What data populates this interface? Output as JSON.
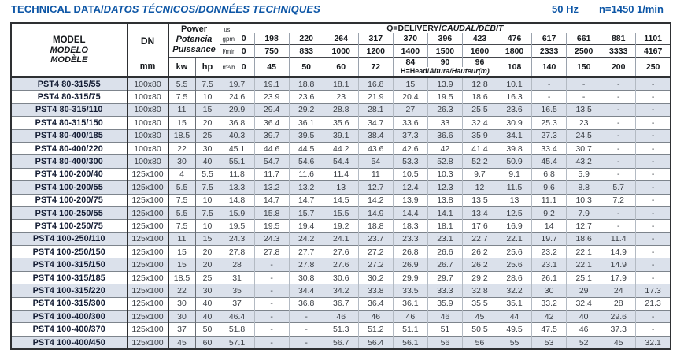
{
  "header": {
    "title_regular": "TECHNICAL DATA/",
    "title_italic": "DATOS TÉCNICOS/DONNÉES TECHNIQUES",
    "frequency": "50 Hz",
    "speed": "n=1450 1/min"
  },
  "table": {
    "model_header": {
      "en": "MODEL",
      "es": "MODELO",
      "fr": "MODÈLE"
    },
    "dn": {
      "label": "DN",
      "unit": "mm"
    },
    "power": {
      "en": "Power",
      "es": "Potencia",
      "fr": "Puissance",
      "kw": "kw",
      "hp": "hp"
    },
    "delivery": {
      "label_regular": "Q=DELIVERY/",
      "label_italic": "CAUDAL/DÉBIT",
      "us_label": "us",
      "gpm_label": "gpm",
      "lmin_label": "l/min",
      "m3h_label": "m³/h",
      "gpm": [
        "0",
        "198",
        "220",
        "264",
        "317",
        "370",
        "396",
        "423",
        "476",
        "617",
        "661",
        "881",
        "1101"
      ],
      "lmin": [
        "0",
        "750",
        "833",
        "1000",
        "1200",
        "1400",
        "1500",
        "1600",
        "1800",
        "2333",
        "2500",
        "3333",
        "4167"
      ],
      "m3h": [
        "0",
        "45",
        "50",
        "60",
        "72",
        "84",
        "90",
        "96",
        "108",
        "140",
        "150",
        "200",
        "250"
      ],
      "head_label_regular": "H=Head/",
      "head_label_italic": "Altura/Hauteur(m)"
    },
    "rows": [
      {
        "model": "PST4 80-315/55",
        "dn": "100x80",
        "kw": "5.5",
        "hp": "7.5",
        "values": [
          "19.7",
          "19.1",
          "18.8",
          "18.1",
          "16.8",
          "15",
          "13.9",
          "12.8",
          "10.1",
          "-",
          "-",
          "-",
          "-"
        ]
      },
      {
        "model": "PST4 80-315/75",
        "dn": "100x80",
        "kw": "7.5",
        "hp": "10",
        "values": [
          "24.6",
          "23.9",
          "23.6",
          "23",
          "21.9",
          "20.4",
          "19.5",
          "18.6",
          "16.3",
          "-",
          "-",
          "-",
          "-"
        ]
      },
      {
        "model": "PST4 80-315/110",
        "dn": "100x80",
        "kw": "11",
        "hp": "15",
        "values": [
          "29.9",
          "29.4",
          "29.2",
          "28.8",
          "28.1",
          "27",
          "26.3",
          "25.5",
          "23.6",
          "16.5",
          "13.5",
          "-",
          "-"
        ]
      },
      {
        "model": "PST4 80-315/150",
        "dn": "100x80",
        "kw": "15",
        "hp": "20",
        "values": [
          "36.8",
          "36.4",
          "36.1",
          "35.6",
          "34.7",
          "33.6",
          "33",
          "32.4",
          "30.9",
          "25.3",
          "23",
          "-",
          "-"
        ]
      },
      {
        "model": "PST4 80-400/185",
        "dn": "100x80",
        "kw": "18.5",
        "hp": "25",
        "values": [
          "40.3",
          "39.7",
          "39.5",
          "39.1",
          "38.4",
          "37.3",
          "36.6",
          "35.9",
          "34.1",
          "27.3",
          "24.5",
          "-",
          "-"
        ]
      },
      {
        "model": "PST4 80-400/220",
        "dn": "100x80",
        "kw": "22",
        "hp": "30",
        "values": [
          "45.1",
          "44.6",
          "44.5",
          "44.2",
          "43.6",
          "42.6",
          "42",
          "41.4",
          "39.8",
          "33.4",
          "30.7",
          "-",
          "-"
        ]
      },
      {
        "model": "PST4 80-400/300",
        "dn": "100x80",
        "kw": "30",
        "hp": "40",
        "values": [
          "55.1",
          "54.7",
          "54.6",
          "54.4",
          "54",
          "53.3",
          "52.8",
          "52.2",
          "50.9",
          "45.4",
          "43.2",
          "-",
          "-"
        ]
      },
      {
        "model": "PST4 100-200/40",
        "dn": "125x100",
        "kw": "4",
        "hp": "5.5",
        "values": [
          "11.8",
          "11.7",
          "11.6",
          "11.4",
          "11",
          "10.5",
          "10.3",
          "9.7",
          "9.1",
          "6.8",
          "5.9",
          "-",
          "-"
        ]
      },
      {
        "model": "PST4 100-200/55",
        "dn": "125x100",
        "kw": "5.5",
        "hp": "7.5",
        "values": [
          "13.3",
          "13.2",
          "13.2",
          "13",
          "12.7",
          "12.4",
          "12.3",
          "12",
          "11.5",
          "9.6",
          "8.8",
          "5.7",
          "-"
        ]
      },
      {
        "model": "PST4 100-200/75",
        "dn": "125x100",
        "kw": "7.5",
        "hp": "10",
        "values": [
          "14.8",
          "14.7",
          "14.7",
          "14.5",
          "14.2",
          "13.9",
          "13.8",
          "13.5",
          "13",
          "11.1",
          "10.3",
          "7.2",
          "-"
        ]
      },
      {
        "model": "PST4 100-250/55",
        "dn": "125x100",
        "kw": "5.5",
        "hp": "7.5",
        "values": [
          "15.9",
          "15.8",
          "15.7",
          "15.5",
          "14.9",
          "14.4",
          "14.1",
          "13.4",
          "12.5",
          "9.2",
          "7.9",
          "-",
          "-"
        ]
      },
      {
        "model": "PST4 100-250/75",
        "dn": "125x100",
        "kw": "7.5",
        "hp": "10",
        "values": [
          "19.5",
          "19.5",
          "19.4",
          "19.2",
          "18.8",
          "18.3",
          "18.1",
          "17.6",
          "16.9",
          "14",
          "12.7",
          "-",
          "-"
        ]
      },
      {
        "model": "PST4 100-250/110",
        "dn": "125x100",
        "kw": "11",
        "hp": "15",
        "values": [
          "24.3",
          "24.3",
          "24.2",
          "24.1",
          "23.7",
          "23.3",
          "23.1",
          "22.7",
          "22.1",
          "19.7",
          "18.6",
          "11.4",
          "-"
        ]
      },
      {
        "model": "PST4 100-250/150",
        "dn": "125x100",
        "kw": "15",
        "hp": "20",
        "values": [
          "27.8",
          "27.8",
          "27.7",
          "27.6",
          "27.2",
          "26.8",
          "26.6",
          "26.2",
          "25.6",
          "23.2",
          "22.1",
          "14.9",
          "-"
        ]
      },
      {
        "model": "PST4 100-315/150",
        "dn": "125x100",
        "kw": "15",
        "hp": "20",
        "values": [
          "28",
          "-",
          "27.8",
          "27.6",
          "27.2",
          "26.9",
          "26.7",
          "26.2",
          "25.6",
          "23.1",
          "22.1",
          "14.9",
          "-"
        ]
      },
      {
        "model": "PST4 100-315/185",
        "dn": "125x100",
        "kw": "18.5",
        "hp": "25",
        "values": [
          "31",
          "-",
          "30.8",
          "30.6",
          "30.2",
          "29.9",
          "29.7",
          "29.2",
          "28.6",
          "26.1",
          "25.1",
          "17.9",
          "-"
        ]
      },
      {
        "model": "PST4 100-315/220",
        "dn": "125x100",
        "kw": "22",
        "hp": "30",
        "values": [
          "35",
          "-",
          "34.4",
          "34.2",
          "33.8",
          "33.5",
          "33.3",
          "32.8",
          "32.2",
          "30",
          "29",
          "24",
          "17.3"
        ]
      },
      {
        "model": "PST4 100-315/300",
        "dn": "125x100",
        "kw": "30",
        "hp": "40",
        "values": [
          "37",
          "-",
          "36.8",
          "36.7",
          "36.4",
          "36.1",
          "35.9",
          "35.5",
          "35.1",
          "33.2",
          "32.4",
          "28",
          "21.3"
        ]
      },
      {
        "model": "PST4 100-400/300",
        "dn": "125x100",
        "kw": "30",
        "hp": "40",
        "values": [
          "46.4",
          "-",
          "-",
          "46",
          "46",
          "46",
          "46",
          "45",
          "44",
          "42",
          "40",
          "29.6",
          "-"
        ]
      },
      {
        "model": "PST4 100-400/370",
        "dn": "125x100",
        "kw": "37",
        "hp": "50",
        "values": [
          "51.8",
          "-",
          "-",
          "51.3",
          "51.2",
          "51.1",
          "51",
          "50.5",
          "49.5",
          "47.5",
          "46",
          "37.3",
          "-"
        ]
      },
      {
        "model": "PST4 100-400/450",
        "dn": "125x100",
        "kw": "45",
        "hp": "60",
        "values": [
          "57.1",
          "-",
          "-",
          "56.7",
          "56.4",
          "56.1",
          "56",
          "56",
          "55",
          "53",
          "52",
          "45",
          "32.1"
        ]
      }
    ]
  }
}
